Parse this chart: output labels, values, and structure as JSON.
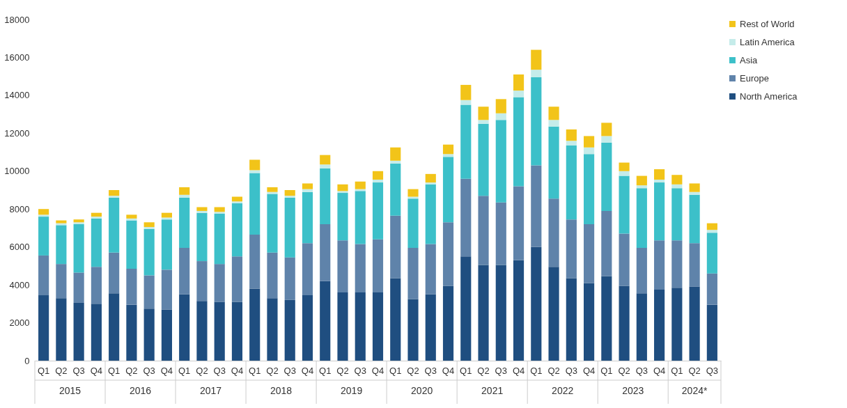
{
  "chart_data": {
    "type": "bar",
    "stacked": true,
    "categories": [
      "Q1",
      "Q2",
      "Q3",
      "Q4",
      "Q1",
      "Q2",
      "Q3",
      "Q4",
      "Q1",
      "Q2",
      "Q3",
      "Q4",
      "Q1",
      "Q2",
      "Q3",
      "Q4",
      "Q1",
      "Q2",
      "Q3",
      "Q4",
      "Q1",
      "Q2",
      "Q3",
      "Q4",
      "Q1",
      "Q2",
      "Q3",
      "Q4",
      "Q1",
      "Q2",
      "Q3",
      "Q4",
      "Q1",
      "Q2",
      "Q3",
      "Q4",
      "Q1",
      "Q2",
      "Q3"
    ],
    "annotations": [
      "2015",
      "2016",
      "2017",
      "2018",
      "2019",
      "2020",
      "2021",
      "2022",
      "2023",
      "2024*"
    ],
    "ylim": [
      0,
      18000
    ],
    "yticks": [
      0,
      2000,
      4000,
      6000,
      8000,
      10000,
      12000,
      14000,
      16000,
      18000
    ],
    "grid": false,
    "legend": "top right",
    "series": [
      {
        "name": "North America",
        "color": "#1f4e80",
        "values": [
          3450,
          3300,
          3050,
          3000,
          3550,
          2950,
          2750,
          2700,
          3500,
          3150,
          3100,
          3100,
          3800,
          3300,
          3200,
          3450,
          4200,
          3600,
          3600,
          3600,
          4350,
          3250,
          3500,
          3950,
          5500,
          5050,
          5050,
          5300,
          6000,
          4950,
          4350,
          4100,
          4450,
          3950,
          3550,
          3750,
          3850,
          3900,
          2950
        ]
      },
      {
        "name": "Europe",
        "color": "#5f83aa",
        "values": [
          2100,
          1800,
          1600,
          1950,
          2150,
          1900,
          1750,
          2100,
          2450,
          2100,
          2000,
          2400,
          2850,
          2400,
          2250,
          2750,
          3000,
          2750,
          2550,
          2800,
          3300,
          2700,
          2650,
          3350,
          4100,
          3650,
          3300,
          3900,
          4300,
          3600,
          3100,
          3100,
          3450,
          2750,
          2400,
          2600,
          2500,
          2300,
          1650
        ]
      },
      {
        "name": "Asia",
        "color": "#3cc0c9",
        "values": [
          2050,
          2050,
          2550,
          2550,
          2900,
          2550,
          2450,
          2650,
          2650,
          2550,
          2650,
          2800,
          3250,
          3100,
          3150,
          2700,
          2950,
          2500,
          2800,
          3000,
          2750,
          2600,
          3150,
          3450,
          3900,
          3800,
          4350,
          4700,
          4650,
          3800,
          3900,
          3700,
          3600,
          3050,
          3150,
          3050,
          2750,
          2550,
          2150
        ]
      },
      {
        "name": "Latin America",
        "color": "#c5ecea",
        "values": [
          100,
          100,
          100,
          100,
          100,
          100,
          100,
          100,
          150,
          100,
          100,
          100,
          150,
          100,
          100,
          150,
          200,
          100,
          100,
          150,
          150,
          100,
          100,
          150,
          250,
          200,
          350,
          350,
          400,
          350,
          250,
          350,
          350,
          250,
          150,
          150,
          200,
          150,
          150
        ]
      },
      {
        "name": "Rest of World",
        "color": "#f2c419",
        "values": [
          300,
          150,
          150,
          200,
          300,
          200,
          250,
          250,
          400,
          200,
          250,
          250,
          550,
          250,
          300,
          300,
          500,
          350,
          400,
          450,
          700,
          400,
          450,
          500,
          800,
          700,
          750,
          850,
          1050,
          700,
          600,
          600,
          700,
          450,
          500,
          550,
          500,
          450,
          350
        ]
      }
    ]
  }
}
